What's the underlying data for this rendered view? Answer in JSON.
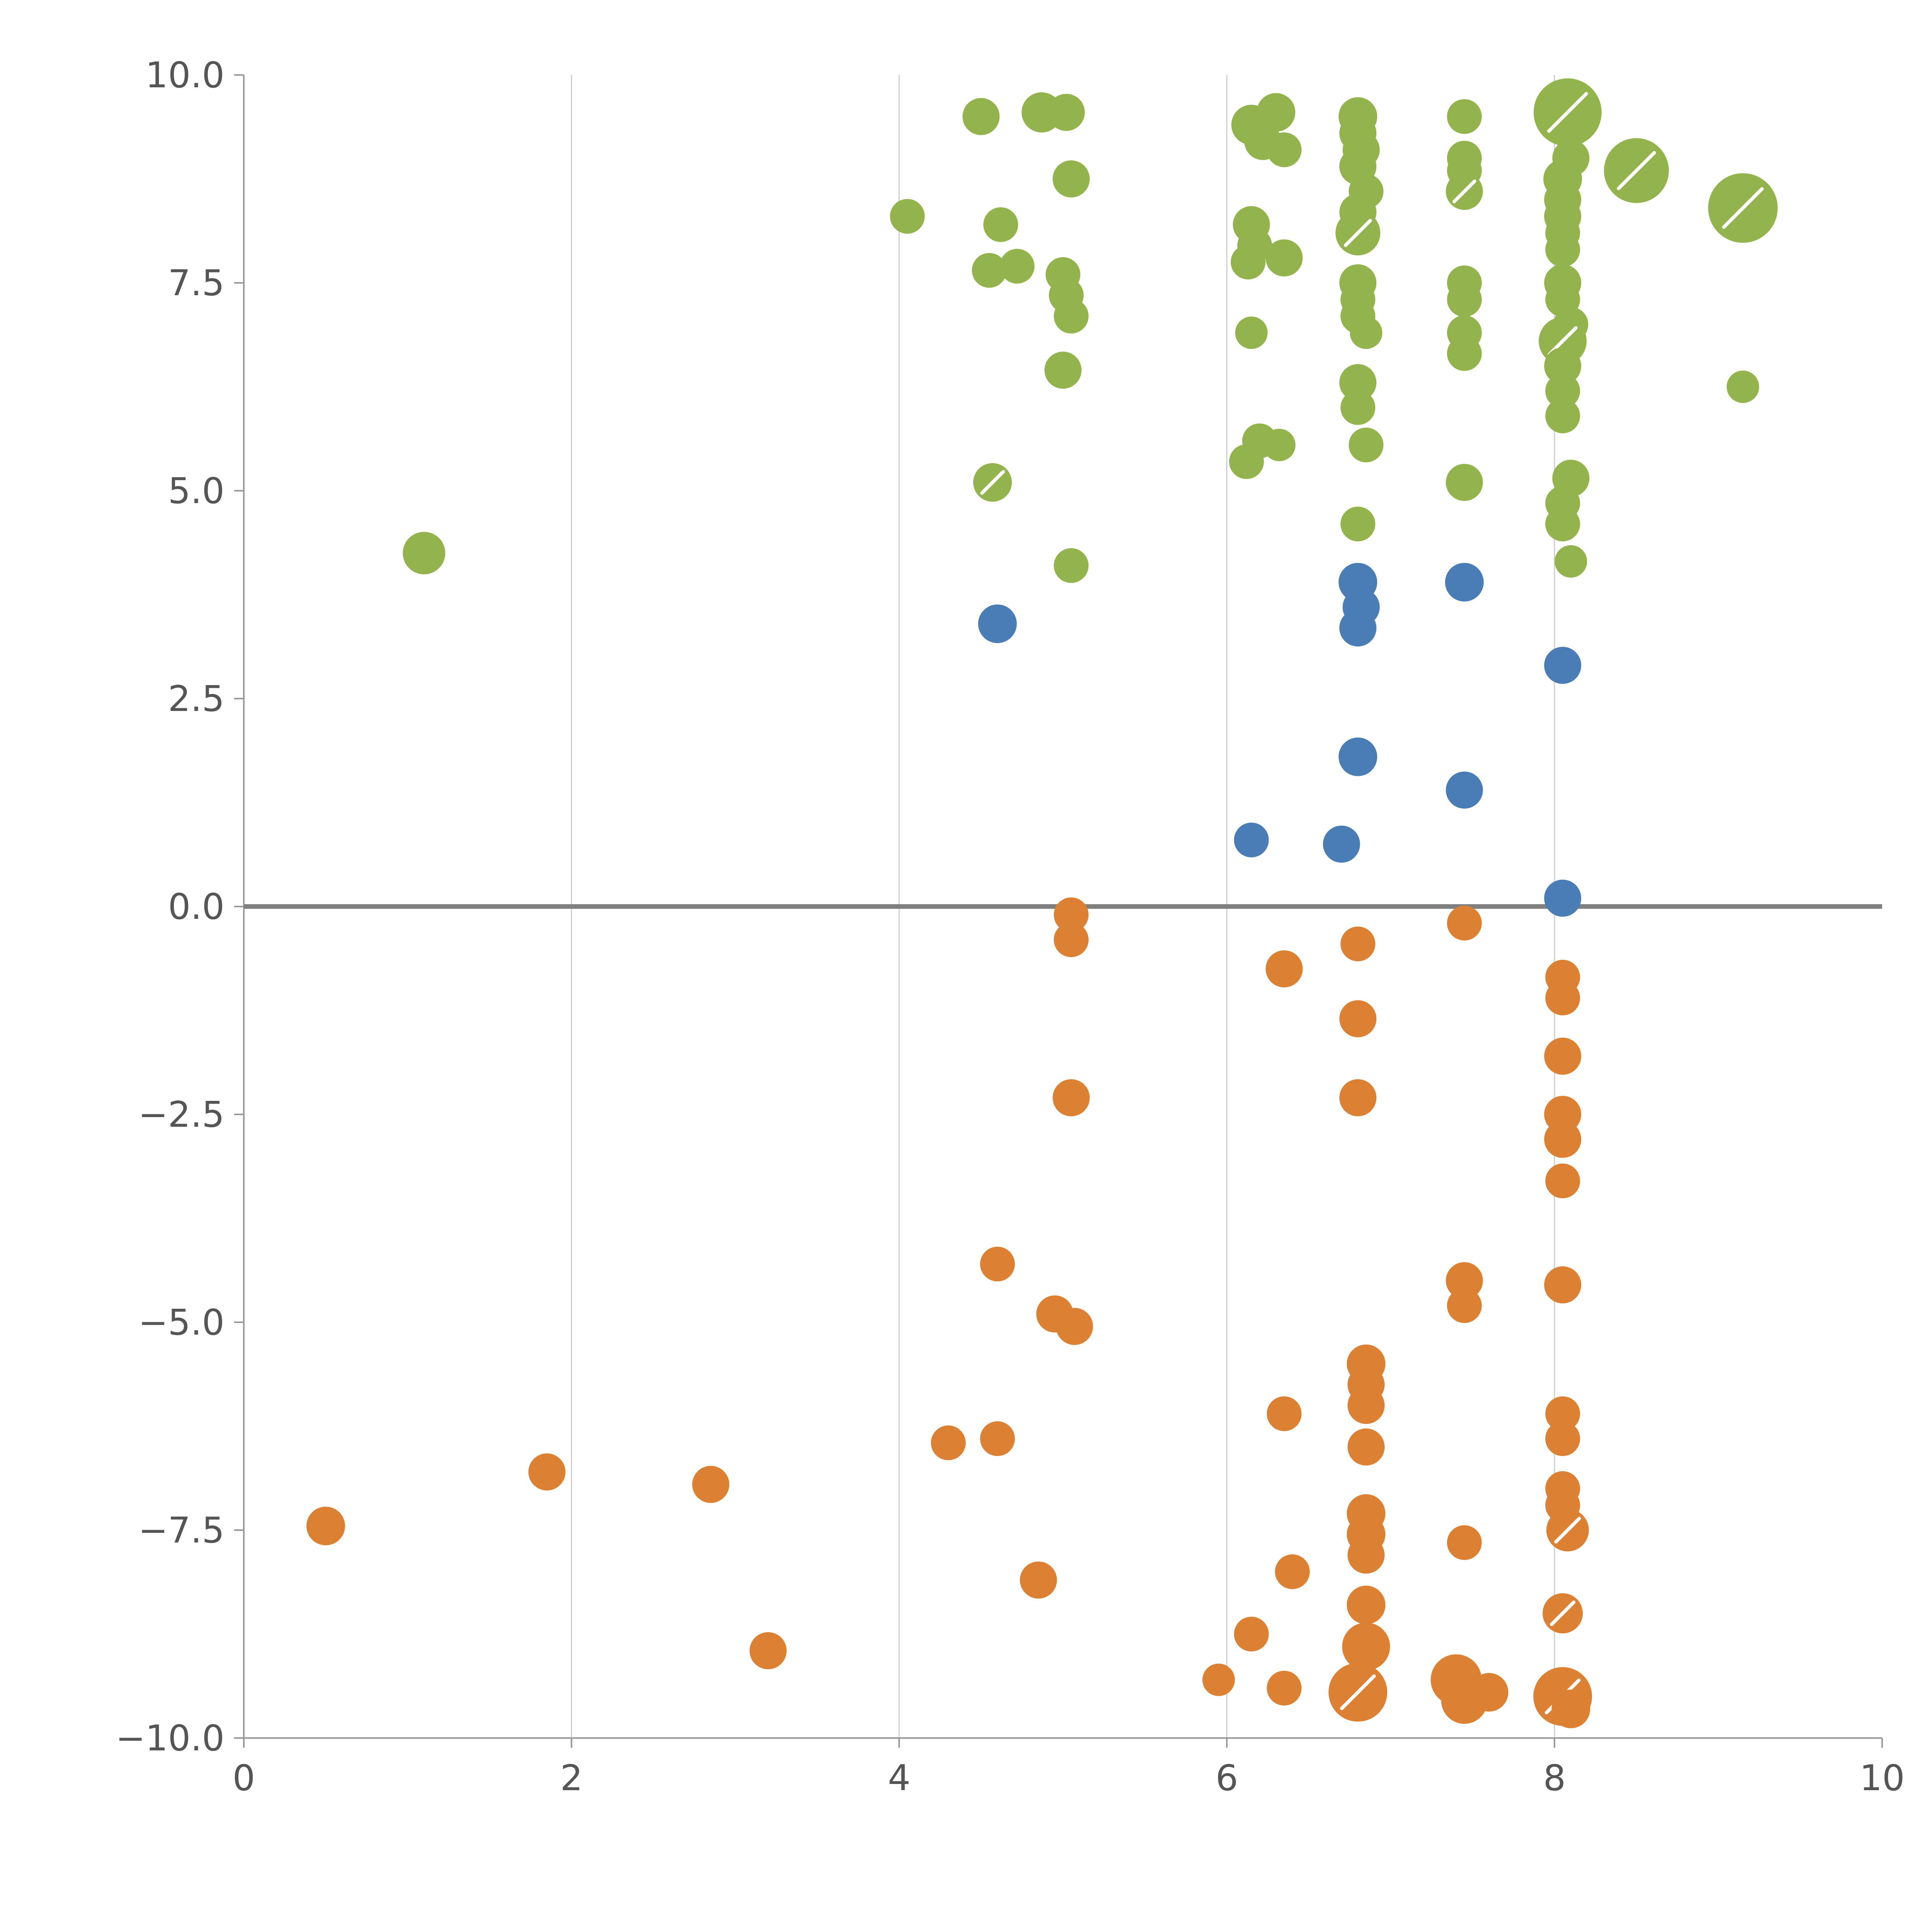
{
  "chart_data": {
    "type": "scatter",
    "title": "",
    "xlabel": "",
    "ylabel": "",
    "xlim": [
      0,
      10
    ],
    "ylim": [
      -10,
      10
    ],
    "x_ticks": [
      0,
      2,
      4,
      6,
      8,
      10
    ],
    "x_tick_labels": [
      "0",
      "2",
      "4",
      "6",
      "8",
      "10"
    ],
    "y_ticks": [
      -10,
      -7.5,
      -5,
      -2.5,
      0,
      2.5,
      5,
      7.5,
      10
    ],
    "y_tick_labels": [
      "−10.0",
      "−7.5",
      "−5.0",
      "−2.5",
      "0.0",
      "2.5",
      "5.0",
      "7.5",
      "10.0"
    ],
    "grid": {
      "vertical_at": [
        2,
        4,
        6,
        8
      ],
      "horizontal": false
    },
    "zero_line_y": 0,
    "legend": "none",
    "colors": {
      "green": "#93b34d",
      "blue": "#4a7db5",
      "orange": "#dc8033",
      "grid": "#cccccc",
      "spine": "#999999",
      "zero_line": "#808080",
      "tick_text": "#555555"
    },
    "series": [
      {
        "name": "green",
        "color": "#93b34d",
        "points": [
          [
            1.1,
            4.25,
            55
          ],
          [
            4.05,
            8.3,
            45
          ],
          [
            4.5,
            9.5,
            48
          ],
          [
            4.55,
            7.65,
            45
          ],
          [
            4.62,
            8.2,
            45
          ],
          [
            4.72,
            7.7,
            45
          ],
          [
            4.87,
            9.55,
            52
          ],
          [
            5.02,
            9.55,
            48
          ],
          [
            5.05,
            8.75,
            48
          ],
          [
            5.0,
            7.6,
            45
          ],
          [
            5.02,
            7.35,
            45
          ],
          [
            5.05,
            7.1,
            45
          ],
          [
            5.0,
            6.45,
            48
          ],
          [
            4.57,
            5.1,
            50,
            1
          ],
          [
            5.05,
            4.1,
            45
          ],
          [
            6.15,
            9.4,
            52
          ],
          [
            6.3,
            9.55,
            50
          ],
          [
            6.22,
            9.2,
            48
          ],
          [
            6.35,
            9.1,
            45
          ],
          [
            6.15,
            8.2,
            48
          ],
          [
            6.17,
            7.95,
            45
          ],
          [
            6.13,
            7.75,
            45
          ],
          [
            6.35,
            7.8,
            48
          ],
          [
            6.15,
            6.9,
            42
          ],
          [
            6.2,
            5.6,
            45
          ],
          [
            6.12,
            5.35,
            45
          ],
          [
            6.32,
            5.55,
            42
          ],
          [
            6.8,
            9.5,
            50
          ],
          [
            6.8,
            9.3,
            48
          ],
          [
            6.82,
            9.1,
            48
          ],
          [
            6.8,
            8.9,
            48
          ],
          [
            6.85,
            8.6,
            45
          ],
          [
            6.8,
            8.35,
            48
          ],
          [
            6.8,
            8.1,
            58,
            1
          ],
          [
            6.8,
            7.5,
            48
          ],
          [
            6.8,
            7.3,
            45
          ],
          [
            6.8,
            7.1,
            45
          ],
          [
            6.85,
            6.9,
            42
          ],
          [
            6.8,
            6.3,
            48
          ],
          [
            6.8,
            6.0,
            45
          ],
          [
            6.85,
            5.55,
            45
          ],
          [
            6.8,
            4.6,
            45
          ],
          [
            7.45,
            9.5,
            45
          ],
          [
            7.45,
            9.0,
            45
          ],
          [
            7.45,
            8.85,
            45
          ],
          [
            7.45,
            8.6,
            48,
            1
          ],
          [
            7.45,
            7.5,
            45
          ],
          [
            7.45,
            7.3,
            45
          ],
          [
            7.45,
            6.9,
            45
          ],
          [
            7.45,
            6.65,
            45
          ],
          [
            7.45,
            5.1,
            48
          ],
          [
            8.08,
            9.55,
            88,
            1
          ],
          [
            8.1,
            9.0,
            48
          ],
          [
            8.05,
            8.75,
            50
          ],
          [
            8.05,
            8.5,
            48
          ],
          [
            8.05,
            8.3,
            48
          ],
          [
            8.05,
            8.1,
            45
          ],
          [
            8.05,
            7.9,
            45
          ],
          [
            8.05,
            7.5,
            48
          ],
          [
            8.05,
            7.3,
            45
          ],
          [
            8.1,
            7.0,
            45
          ],
          [
            8.05,
            6.8,
            62,
            1
          ],
          [
            8.05,
            6.5,
            48
          ],
          [
            8.05,
            6.2,
            45
          ],
          [
            8.05,
            5.9,
            45
          ],
          [
            8.1,
            5.15,
            48
          ],
          [
            8.05,
            4.85,
            45
          ],
          [
            8.05,
            4.6,
            45
          ],
          [
            8.1,
            4.15,
            42
          ],
          [
            8.5,
            8.85,
            84,
            1
          ],
          [
            9.15,
            8.4,
            90,
            1
          ],
          [
            9.15,
            6.25,
            42
          ]
        ]
      },
      {
        "name": "blue",
        "color": "#4a7db5",
        "points": [
          [
            4.6,
            3.4,
            50
          ],
          [
            6.8,
            3.9,
            50
          ],
          [
            6.82,
            3.6,
            48
          ],
          [
            6.8,
            3.35,
            48
          ],
          [
            7.45,
            3.9,
            50
          ],
          [
            8.05,
            2.9,
            48
          ],
          [
            6.8,
            1.8,
            50
          ],
          [
            7.45,
            1.4,
            48
          ],
          [
            6.15,
            0.8,
            45
          ],
          [
            6.7,
            0.75,
            48
          ],
          [
            8.05,
            0.1,
            48
          ]
        ]
      },
      {
        "name": "orange",
        "color": "#dc8033",
        "points": [
          [
            5.05,
            -0.1,
            45
          ],
          [
            5.05,
            -0.4,
            45
          ],
          [
            7.45,
            -0.2,
            45
          ],
          [
            6.35,
            -0.75,
            48
          ],
          [
            6.8,
            -0.45,
            45
          ],
          [
            8.05,
            -0.85,
            45
          ],
          [
            8.05,
            -1.1,
            45
          ],
          [
            6.8,
            -1.35,
            48
          ],
          [
            8.05,
            -1.8,
            48
          ],
          [
            6.8,
            -2.3,
            48
          ],
          [
            5.05,
            -2.3,
            48
          ],
          [
            8.05,
            -2.5,
            48
          ],
          [
            8.05,
            -2.8,
            48
          ],
          [
            8.05,
            -3.3,
            45
          ],
          [
            4.6,
            -4.3,
            45
          ],
          [
            4.95,
            -4.9,
            48
          ],
          [
            5.07,
            -5.05,
            48
          ],
          [
            7.45,
            -4.5,
            48
          ],
          [
            7.45,
            -4.8,
            45
          ],
          [
            8.05,
            -4.55,
            48
          ],
          [
            6.85,
            -5.5,
            50
          ],
          [
            6.85,
            -5.75,
            48
          ],
          [
            6.85,
            -6.0,
            48
          ],
          [
            6.35,
            -6.1,
            45
          ],
          [
            8.05,
            -6.1,
            45
          ],
          [
            8.05,
            -6.4,
            45
          ],
          [
            6.85,
            -6.5,
            48
          ],
          [
            4.3,
            -6.45,
            45
          ],
          [
            4.6,
            -6.4,
            45
          ],
          [
            1.85,
            -6.8,
            48
          ],
          [
            2.85,
            -6.95,
            48
          ],
          [
            0.5,
            -7.45,
            50
          ],
          [
            8.05,
            -7.0,
            45
          ],
          [
            8.05,
            -7.2,
            45
          ],
          [
            8.08,
            -7.5,
            55,
            1
          ],
          [
            6.85,
            -7.3,
            50
          ],
          [
            6.85,
            -7.55,
            50
          ],
          [
            6.85,
            -7.8,
            48
          ],
          [
            7.45,
            -7.65,
            45
          ],
          [
            4.85,
            -8.1,
            48
          ],
          [
            6.4,
            -8.0,
            45
          ],
          [
            6.85,
            -8.4,
            50
          ],
          [
            3.2,
            -8.95,
            48
          ],
          [
            6.15,
            -8.75,
            45
          ],
          [
            8.05,
            -8.5,
            52,
            1
          ],
          [
            6.85,
            -8.9,
            62
          ],
          [
            5.95,
            -9.3,
            42
          ],
          [
            6.35,
            -9.4,
            45
          ],
          [
            6.8,
            -9.45,
            76,
            1
          ],
          [
            7.4,
            -9.3,
            66
          ],
          [
            7.45,
            -9.55,
            60
          ],
          [
            7.6,
            -9.45,
            50
          ],
          [
            8.05,
            -9.5,
            76,
            1
          ],
          [
            8.1,
            -9.65,
            50
          ]
        ]
      }
    ]
  }
}
